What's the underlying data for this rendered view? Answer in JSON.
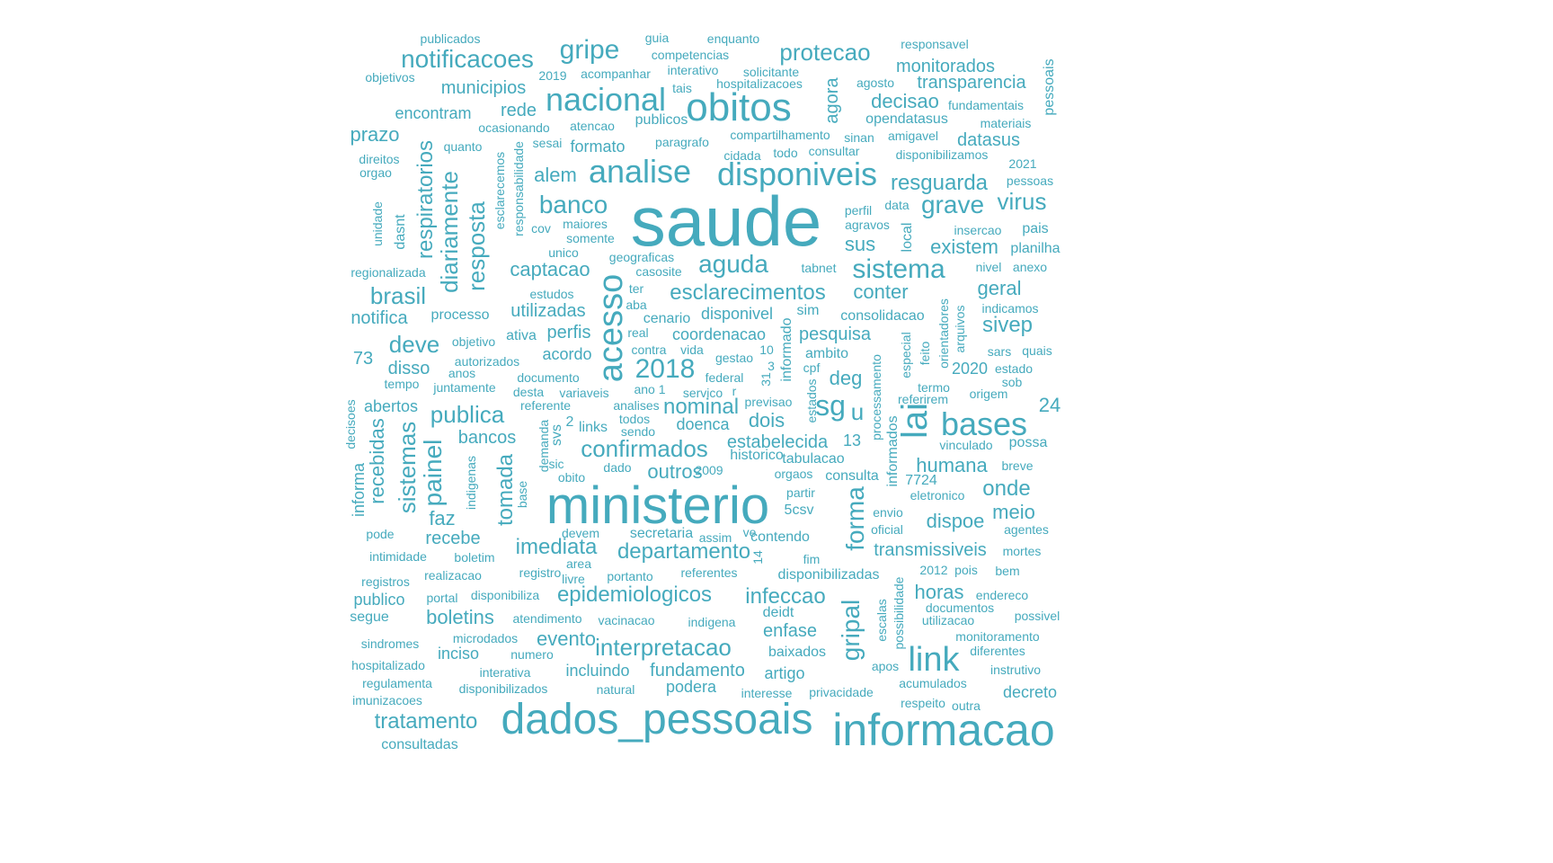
{
  "color": "#45aabd",
  "words": [
    {
      "t": "saude",
      "s": 78
    },
    {
      "t": "ministerio",
      "s": 58
    },
    {
      "t": "dados_pessoais",
      "s": 48
    },
    {
      "t": "informacao",
      "s": 50
    },
    {
      "t": "obitos",
      "s": 44
    },
    {
      "t": "nacional",
      "s": 36
    },
    {
      "t": "analise",
      "s": 36
    },
    {
      "t": "disponiveis",
      "s": 36
    },
    {
      "t": "bases",
      "s": 36
    },
    {
      "t": "lai",
      "s": 40,
      "v": 1
    },
    {
      "t": "link",
      "s": 38
    },
    {
      "t": "acesso",
      "s": 38,
      "v": 1
    },
    {
      "t": "gripe",
      "s": 30
    },
    {
      "t": "notificacoes",
      "s": 28
    },
    {
      "t": "protecao",
      "s": 26
    },
    {
      "t": "sistema",
      "s": 30
    },
    {
      "t": "aguda",
      "s": 28
    },
    {
      "t": "banco",
      "s": 28
    },
    {
      "t": "grave",
      "s": 28
    },
    {
      "t": "virus",
      "s": 26
    },
    {
      "t": "2018",
      "s": 30
    },
    {
      "t": "sg",
      "s": 32
    },
    {
      "t": "u",
      "s": 26
    },
    {
      "t": "brasil",
      "s": 26
    },
    {
      "t": "deve",
      "s": 26
    },
    {
      "t": "publica",
      "s": 26
    },
    {
      "t": "confirmados",
      "s": 26
    },
    {
      "t": "nominal",
      "s": 24
    },
    {
      "t": "painel",
      "s": 28,
      "v": 1
    },
    {
      "t": "sistemas",
      "s": 26,
      "v": 1
    },
    {
      "t": "tomada",
      "s": 24,
      "v": 1
    },
    {
      "t": "forma",
      "s": 28,
      "v": 1
    },
    {
      "t": "gripal",
      "s": 28,
      "v": 1
    },
    {
      "t": "interpretacao",
      "s": 26
    },
    {
      "t": "tratamento",
      "s": 24
    },
    {
      "t": "resposta",
      "s": 26,
      "v": 1
    },
    {
      "t": "diariamente",
      "s": 26,
      "v": 1
    },
    {
      "t": "respiratorios",
      "s": 24,
      "v": 1
    },
    {
      "t": "recebidas",
      "s": 22,
      "v": 1
    },
    {
      "t": "esclarecimentos",
      "s": 24
    },
    {
      "t": "resguarda",
      "s": 24
    },
    {
      "t": "epidemiologicos",
      "s": 24
    },
    {
      "t": "infeccao",
      "s": 24
    },
    {
      "t": "departamento",
      "s": 24
    },
    {
      "t": "imediata",
      "s": 24
    },
    {
      "t": "boletins",
      "s": 22
    },
    {
      "t": "onde",
      "s": 24
    },
    {
      "t": "humana",
      "s": 22
    },
    {
      "t": "dispoe",
      "s": 22
    },
    {
      "t": "meio",
      "s": 22
    },
    {
      "t": "horas",
      "s": 22
    },
    {
      "t": "decisao",
      "s": 22
    },
    {
      "t": "monitorados",
      "s": 20
    },
    {
      "t": "municipios",
      "s": 20
    },
    {
      "t": "rede",
      "s": 20
    },
    {
      "t": "prazo",
      "s": 22
    },
    {
      "t": "encontram",
      "s": 18
    },
    {
      "t": "alem",
      "s": 22
    },
    {
      "t": "captacao",
      "s": 22
    },
    {
      "t": "sus",
      "s": 22
    },
    {
      "t": "existem",
      "s": 22
    },
    {
      "t": "conter",
      "s": 22
    },
    {
      "t": "geral",
      "s": 22
    },
    {
      "t": "sivep",
      "s": 24
    },
    {
      "t": "datasus",
      "s": 20
    },
    {
      "t": "transparencia",
      "s": 20
    },
    {
      "t": "pesquisa",
      "s": 20
    },
    {
      "t": "deg",
      "s": 22
    },
    {
      "t": "estabelecida",
      "s": 20
    },
    {
      "t": "dois",
      "s": 22
    },
    {
      "t": "outros",
      "s": 22
    },
    {
      "t": "notifica",
      "s": 20
    },
    {
      "t": "utilizadas",
      "s": 20
    },
    {
      "t": "perfis",
      "s": 20
    },
    {
      "t": "disso",
      "s": 20
    },
    {
      "t": "agora",
      "s": 20,
      "v": 1
    },
    {
      "t": "faz",
      "s": 22
    },
    {
      "t": "recebe",
      "s": 20
    },
    {
      "t": "bancos",
      "s": 20
    },
    {
      "t": "evento",
      "s": 22
    },
    {
      "t": "fundamento",
      "s": 20
    },
    {
      "t": "enfase",
      "s": 20
    },
    {
      "t": "transmissiveis",
      "s": 20
    },
    {
      "t": "24",
      "s": 22
    },
    {
      "t": "73",
      "s": 20
    },
    {
      "t": "13",
      "s": 18
    },
    {
      "t": "formato",
      "s": 18
    },
    {
      "t": "opendatasus",
      "s": 16
    },
    {
      "t": "abertos",
      "s": 18
    },
    {
      "t": "doenca",
      "s": 18
    },
    {
      "t": "2020",
      "s": 18
    },
    {
      "t": "acordo",
      "s": 18
    },
    {
      "t": "coordenacao",
      "s": 18
    },
    {
      "t": "disponivel",
      "s": 18
    },
    {
      "t": "inciso",
      "s": 18
    },
    {
      "t": "incluindo",
      "s": 18
    },
    {
      "t": "podera",
      "s": 18
    },
    {
      "t": "artigo",
      "s": 18
    },
    {
      "t": "decreto",
      "s": 18
    },
    {
      "t": "consultadas",
      "s": 16
    },
    {
      "t": "publico",
      "s": 18
    },
    {
      "t": "segue",
      "s": 16
    },
    {
      "t": "secretaria",
      "s": 16
    },
    {
      "t": "contendo",
      "s": 16
    },
    {
      "t": "cenario",
      "s": 16
    },
    {
      "t": "processo",
      "s": 16
    },
    {
      "t": "ativa",
      "s": 16
    },
    {
      "t": "ambito",
      "s": 16
    },
    {
      "t": "consolidacao",
      "s": 16
    },
    {
      "t": "5csv",
      "s": 16
    },
    {
      "t": "historico",
      "s": 16
    },
    {
      "t": "tabulacao",
      "s": 16
    },
    {
      "t": "consulta",
      "s": 16
    },
    {
      "t": "7724",
      "s": 16
    },
    {
      "t": "baixados",
      "s": 16
    },
    {
      "t": "possivel",
      "s": 14
    },
    {
      "t": "decisoes",
      "s": 14,
      "v": 1
    },
    {
      "t": "informa",
      "s": 18,
      "v": 1
    },
    {
      "t": "dasnt",
      "s": 16,
      "v": 1
    },
    {
      "t": "unidade",
      "s": 14,
      "v": 1
    },
    {
      "t": "esclarecemos",
      "s": 14,
      "v": 1
    },
    {
      "t": "responsabilidade",
      "s": 14,
      "v": 1
    },
    {
      "t": "pessoais",
      "s": 16,
      "v": 1
    },
    {
      "t": "demanda",
      "s": 14,
      "v": 1
    },
    {
      "t": "svs",
      "s": 16,
      "v": 1
    },
    {
      "t": "base",
      "s": 14,
      "v": 1
    },
    {
      "t": "indigenas",
      "s": 14,
      "v": 1
    },
    {
      "t": "informado",
      "s": 16,
      "v": 1
    },
    {
      "t": "estados",
      "s": 14,
      "v": 1
    },
    {
      "t": "processamento",
      "s": 14,
      "v": 1
    },
    {
      "t": "informados",
      "s": 16,
      "v": 1
    },
    {
      "t": "especial",
      "s": 14,
      "v": 1
    },
    {
      "t": "feito",
      "s": 14,
      "v": 1
    },
    {
      "t": "orientadores",
      "s": 14,
      "v": 1
    },
    {
      "t": "arquivos",
      "s": 14,
      "v": 1
    },
    {
      "t": "escalas",
      "s": 14,
      "v": 1
    },
    {
      "t": "possibilidade",
      "s": 14,
      "v": 1
    },
    {
      "t": "local",
      "s": 16,
      "v": 1
    },
    {
      "t": "14",
      "s": 14,
      "v": 1
    },
    {
      "t": "31",
      "s": 14,
      "v": 1
    },
    {
      "t": "publicados",
      "s": 14
    },
    {
      "t": "guia",
      "s": 14
    },
    {
      "t": "enquanto",
      "s": 14
    },
    {
      "t": "responsavel",
      "s": 14
    },
    {
      "t": "competencias",
      "s": 14
    },
    {
      "t": "objetivos",
      "s": 14
    },
    {
      "t": "2019",
      "s": 14
    },
    {
      "t": "acompanhar",
      "s": 14
    },
    {
      "t": "interativo",
      "s": 14
    },
    {
      "t": "solicitante",
      "s": 14
    },
    {
      "t": "agosto",
      "s": 14
    },
    {
      "t": "tais",
      "s": 14
    },
    {
      "t": "hospitalizacoes",
      "s": 14
    },
    {
      "t": "fundamentais",
      "s": 14
    },
    {
      "t": "materiais",
      "s": 14
    },
    {
      "t": "ocasionando",
      "s": 14
    },
    {
      "t": "atencao",
      "s": 14
    },
    {
      "t": "publicos",
      "s": 16
    },
    {
      "t": "compartilhamento",
      "s": 14
    },
    {
      "t": "sinan",
      "s": 14
    },
    {
      "t": "amigavel",
      "s": 14
    },
    {
      "t": "quanto",
      "s": 14
    },
    {
      "t": "sesai",
      "s": 14
    },
    {
      "t": "paragrafo",
      "s": 14
    },
    {
      "t": "todo",
      "s": 14
    },
    {
      "t": "consultar",
      "s": 14
    },
    {
      "t": "direitos",
      "s": 14
    },
    {
      "t": "cidada",
      "s": 14
    },
    {
      "t": "disponibilizamos",
      "s": 14
    },
    {
      "t": "orgao",
      "s": 14
    },
    {
      "t": "2021",
      "s": 14
    },
    {
      "t": "pessoas",
      "s": 14
    },
    {
      "t": "perfil",
      "s": 14
    },
    {
      "t": "data",
      "s": 14
    },
    {
      "t": "agravos",
      "s": 14
    },
    {
      "t": "maiores",
      "s": 14
    },
    {
      "t": "cov",
      "s": 14
    },
    {
      "t": "somente",
      "s": 14
    },
    {
      "t": "unico",
      "s": 14
    },
    {
      "t": "insercao",
      "s": 14
    },
    {
      "t": "pais",
      "s": 16
    },
    {
      "t": "planilha",
      "s": 16
    },
    {
      "t": "geograficas",
      "s": 14
    },
    {
      "t": "tabnet",
      "s": 14
    },
    {
      "t": "nivel",
      "s": 14
    },
    {
      "t": "anexo",
      "s": 14
    },
    {
      "t": "casosite",
      "s": 14
    },
    {
      "t": "regionalizada",
      "s": 14
    },
    {
      "t": "ter",
      "s": 14
    },
    {
      "t": "estudos",
      "s": 14
    },
    {
      "t": "aba",
      "s": 14
    },
    {
      "t": "sim",
      "s": 16
    },
    {
      "t": "indicamos",
      "s": 14
    },
    {
      "t": "real",
      "s": 14
    },
    {
      "t": "objetivo",
      "s": 14
    },
    {
      "t": "contra",
      "s": 14
    },
    {
      "t": "vida",
      "s": 14
    },
    {
      "t": "10",
      "s": 14
    },
    {
      "t": "sars",
      "s": 14
    },
    {
      "t": "quais",
      "s": 14
    },
    {
      "t": "autorizados",
      "s": 14
    },
    {
      "t": "gestao",
      "s": 14
    },
    {
      "t": "3",
      "s": 14
    },
    {
      "t": "cpf",
      "s": 14
    },
    {
      "t": "estado",
      "s": 14
    },
    {
      "t": "anos",
      "s": 14
    },
    {
      "t": "documento",
      "s": 14
    },
    {
      "t": "federal",
      "s": 14
    },
    {
      "t": "tempo",
      "s": 14
    },
    {
      "t": "juntamente",
      "s": 14
    },
    {
      "t": "desta",
      "s": 14
    },
    {
      "t": "variaveis",
      "s": 14
    },
    {
      "t": "ano 1",
      "s": 14
    },
    {
      "t": "servico",
      "s": 14
    },
    {
      "t": "r",
      "s": 14
    },
    {
      "t": "termo",
      "s": 14
    },
    {
      "t": "sob",
      "s": 14
    },
    {
      "t": "referirem",
      "s": 14
    },
    {
      "t": "origem",
      "s": 14
    },
    {
      "t": "previsao",
      "s": 14
    },
    {
      "t": "referente",
      "s": 14
    },
    {
      "t": "analises",
      "s": 14
    },
    {
      "t": "todos",
      "s": 14
    },
    {
      "t": "2",
      "s": 16
    },
    {
      "t": "links",
      "s": 16
    },
    {
      "t": "sendo",
      "s": 14
    },
    {
      "t": "vinculado",
      "s": 14
    },
    {
      "t": "possa",
      "s": 16
    },
    {
      "t": "sic",
      "s": 14
    },
    {
      "t": "dado",
      "s": 14
    },
    {
      "t": "2009",
      "s": 14
    },
    {
      "t": "obito",
      "s": 14
    },
    {
      "t": "orgaos",
      "s": 14
    },
    {
      "t": "breve",
      "s": 14
    },
    {
      "t": "partir",
      "s": 14
    },
    {
      "t": "eletronico",
      "s": 14
    },
    {
      "t": "envio",
      "s": 14
    },
    {
      "t": "oficial",
      "s": 14
    },
    {
      "t": "agentes",
      "s": 14
    },
    {
      "t": "pode",
      "s": 14
    },
    {
      "t": "devem",
      "s": 14
    },
    {
      "t": "ve",
      "s": 14
    },
    {
      "t": "assim",
      "s": 14
    },
    {
      "t": "intimidade",
      "s": 14
    },
    {
      "t": "boletim",
      "s": 14
    },
    {
      "t": "area",
      "s": 14
    },
    {
      "t": "fim",
      "s": 14
    },
    {
      "t": "mortes",
      "s": 14
    },
    {
      "t": "registro",
      "s": 14
    },
    {
      "t": "realizacao",
      "s": 14
    },
    {
      "t": "livre",
      "s": 14
    },
    {
      "t": "portanto",
      "s": 14
    },
    {
      "t": "referentes",
      "s": 14
    },
    {
      "t": "disponibilizadas",
      "s": 16
    },
    {
      "t": "2012",
      "s": 14
    },
    {
      "t": "pois",
      "s": 14
    },
    {
      "t": "bem",
      "s": 14
    },
    {
      "t": "registros",
      "s": 14
    },
    {
      "t": "portal",
      "s": 14
    },
    {
      "t": "disponibiliza",
      "s": 14
    },
    {
      "t": "endereco",
      "s": 14
    },
    {
      "t": "deidt",
      "s": 16
    },
    {
      "t": "documentos",
      "s": 14
    },
    {
      "t": "atendimento",
      "s": 14
    },
    {
      "t": "vacinacao",
      "s": 14
    },
    {
      "t": "indigena",
      "s": 14
    },
    {
      "t": "utilizacao",
      "s": 14
    },
    {
      "t": "microdados",
      "s": 14
    },
    {
      "t": "sindromes",
      "s": 14
    },
    {
      "t": "monitoramento",
      "s": 14
    },
    {
      "t": "numero",
      "s": 14
    },
    {
      "t": "diferentes",
      "s": 14
    },
    {
      "t": "hospitalizado",
      "s": 14
    },
    {
      "t": "apos",
      "s": 14
    },
    {
      "t": "instrutivo",
      "s": 14
    },
    {
      "t": "interativa",
      "s": 14
    },
    {
      "t": "regulamenta",
      "s": 14
    },
    {
      "t": "disponibilizados",
      "s": 14
    },
    {
      "t": "natural",
      "s": 14
    },
    {
      "t": "acumulados",
      "s": 14
    },
    {
      "t": "interesse",
      "s": 14
    },
    {
      "t": "privacidade",
      "s": 14
    },
    {
      "t": "imunizacoes",
      "s": 14
    },
    {
      "t": "respeito",
      "s": 14
    },
    {
      "t": "outra",
      "s": 14
    }
  ]
}
